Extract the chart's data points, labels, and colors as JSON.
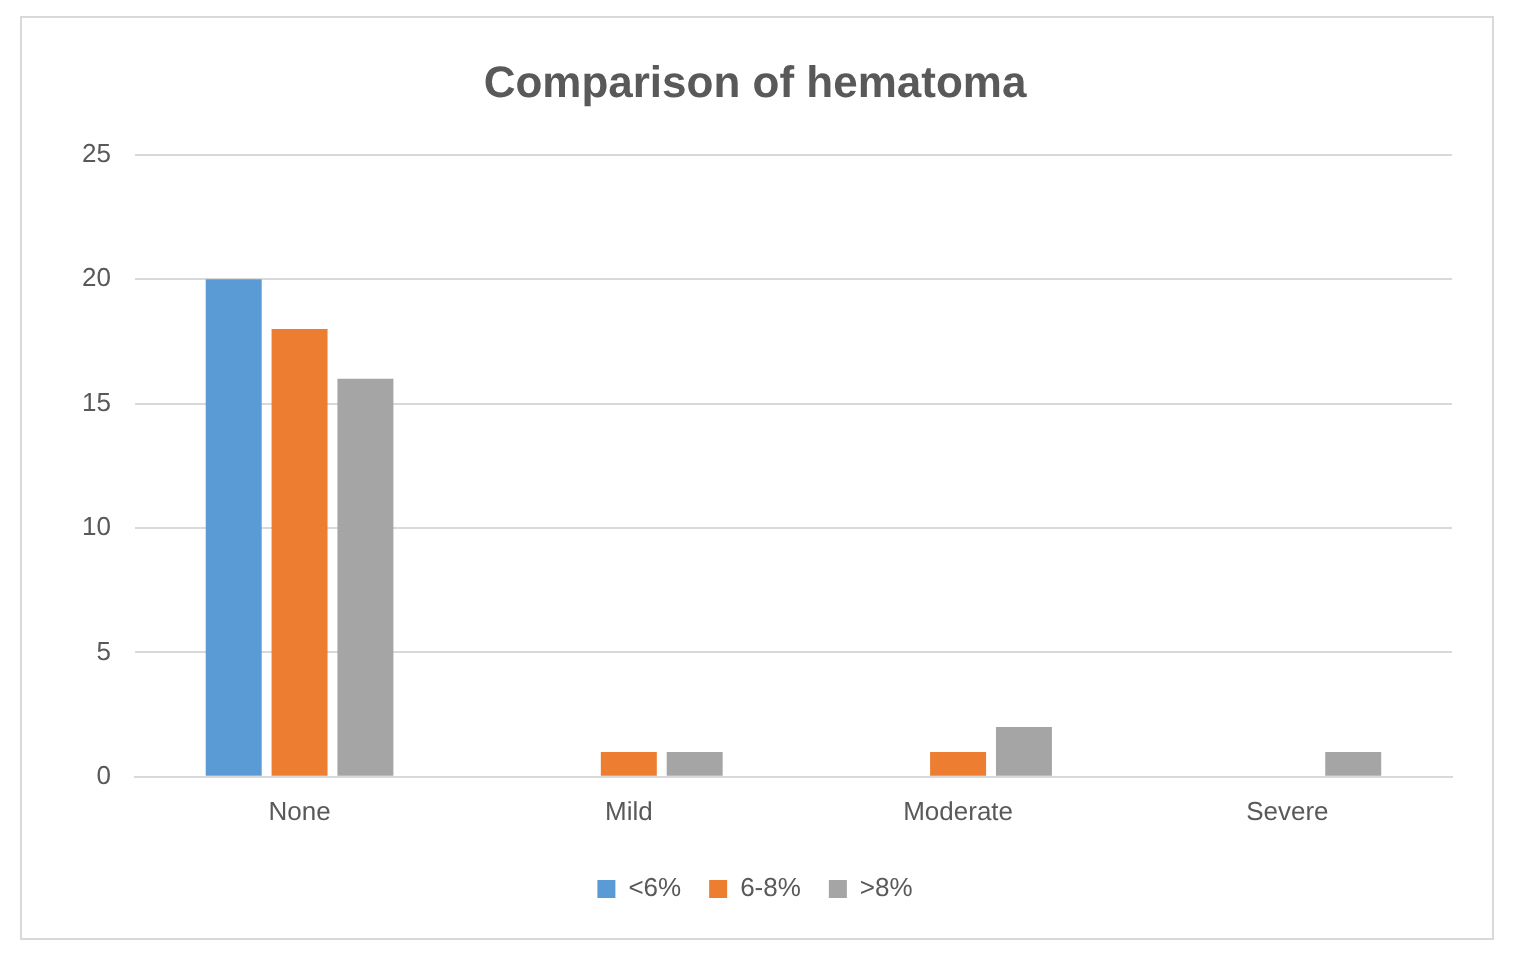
{
  "chart_data": {
    "type": "bar",
    "title": "Comparison of hematoma",
    "categories": [
      "None",
      "Mild",
      "Moderate",
      "Severe"
    ],
    "series": [
      {
        "name": "<6%",
        "color": "#5b9bd5",
        "values": [
          20,
          0,
          0,
          0
        ]
      },
      {
        "name": "6-8%",
        "color": "#ed7d31",
        "values": [
          18,
          1,
          1,
          0
        ]
      },
      {
        "name": ">8%",
        "color": "#a5a5a5",
        "values": [
          16,
          1,
          2,
          1
        ]
      }
    ],
    "ylim": [
      0,
      25
    ],
    "yticks": [
      0,
      5,
      10,
      15,
      20,
      25
    ],
    "grid": "y",
    "legend": "bottom"
  }
}
